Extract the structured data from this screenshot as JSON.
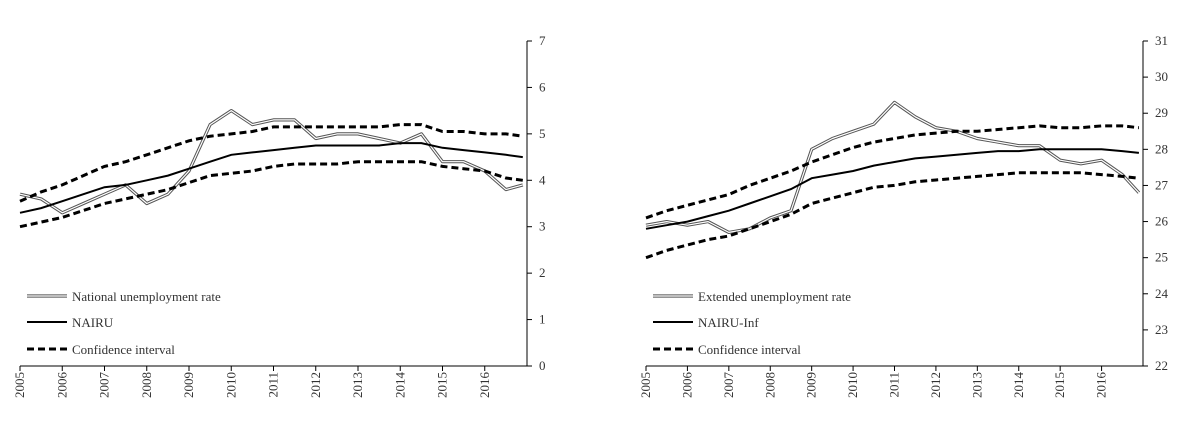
{
  "chart_data": [
    {
      "type": "line",
      "x": [
        2005,
        2005.5,
        2006,
        2006.5,
        2007,
        2007.5,
        2008,
        2008.5,
        2009,
        2009.5,
        2010,
        2010.5,
        2011,
        2011.5,
        2012,
        2012.5,
        2013,
        2013.5,
        2014,
        2014.5,
        2015,
        2015.5,
        2016,
        2016.5,
        2016.9
      ],
      "xlim": [
        2005,
        2017
      ],
      "xticks": [
        2005,
        2006,
        2007,
        2008,
        2009,
        2010,
        2011,
        2012,
        2013,
        2014,
        2015,
        2016
      ],
      "ylim": [
        0,
        7
      ],
      "yticks": [
        0,
        1,
        2,
        3,
        4,
        5,
        6,
        7
      ],
      "legend": "lower left",
      "series": [
        {
          "name": "National unemployment rate",
          "style": "double",
          "color": "#555555",
          "values": [
            3.7,
            3.6,
            3.3,
            3.5,
            3.7,
            3.9,
            3.5,
            3.7,
            4.2,
            5.2,
            5.5,
            5.2,
            5.3,
            5.3,
            4.9,
            5.0,
            5.0,
            4.9,
            4.8,
            5.0,
            4.4,
            4.4,
            4.2,
            3.8,
            3.9
          ]
        },
        {
          "name": "NAIRU",
          "style": "solid",
          "color": "#000000",
          "values": [
            3.3,
            3.4,
            3.55,
            3.7,
            3.85,
            3.9,
            4.0,
            4.1,
            4.25,
            4.4,
            4.55,
            4.6,
            4.65,
            4.7,
            4.75,
            4.75,
            4.75,
            4.75,
            4.8,
            4.8,
            4.7,
            4.65,
            4.6,
            4.55,
            4.5
          ]
        },
        {
          "name": "Confidence interval",
          "style": "dashed",
          "color": "#000000",
          "upper": [
            3.55,
            3.75,
            3.9,
            4.1,
            4.3,
            4.4,
            4.55,
            4.7,
            4.85,
            4.95,
            5.0,
            5.05,
            5.15,
            5.15,
            5.15,
            5.15,
            5.15,
            5.15,
            5.2,
            5.2,
            5.05,
            5.05,
            5.0,
            5.0,
            4.95
          ],
          "lower": [
            3.0,
            3.1,
            3.2,
            3.35,
            3.5,
            3.6,
            3.7,
            3.8,
            3.95,
            4.1,
            4.15,
            4.2,
            4.3,
            4.35,
            4.35,
            4.35,
            4.4,
            4.4,
            4.4,
            4.4,
            4.3,
            4.25,
            4.2,
            4.05,
            4.0
          ]
        }
      ]
    },
    {
      "type": "line",
      "x": [
        2005,
        2005.5,
        2006,
        2006.5,
        2007,
        2007.5,
        2008,
        2008.5,
        2009,
        2009.5,
        2010,
        2010.5,
        2011,
        2011.5,
        2012,
        2012.5,
        2013,
        2013.5,
        2014,
        2014.5,
        2015,
        2015.5,
        2016,
        2016.5,
        2016.9
      ],
      "xlim": [
        2005,
        2017
      ],
      "xticks": [
        2005,
        2006,
        2007,
        2008,
        2009,
        2010,
        2011,
        2012,
        2013,
        2014,
        2015,
        2016
      ],
      "ylim": [
        22,
        31
      ],
      "yticks": [
        22,
        23,
        24,
        25,
        26,
        27,
        28,
        29,
        30,
        31
      ],
      "legend": "lower left",
      "series": [
        {
          "name": "Extended unemployment rate",
          "style": "double",
          "color": "#555555",
          "values": [
            25.9,
            26.0,
            25.9,
            26.0,
            25.7,
            25.8,
            26.1,
            26.3,
            28.0,
            28.3,
            28.5,
            28.7,
            29.3,
            28.9,
            28.6,
            28.5,
            28.3,
            28.2,
            28.1,
            28.1,
            27.7,
            27.6,
            27.7,
            27.3,
            26.8
          ]
        },
        {
          "name": "NAIRU-Inf",
          "style": "solid",
          "color": "#000000",
          "values": [
            25.8,
            25.9,
            26.0,
            26.15,
            26.3,
            26.5,
            26.7,
            26.9,
            27.2,
            27.3,
            27.4,
            27.55,
            27.65,
            27.75,
            27.8,
            27.85,
            27.9,
            27.95,
            27.95,
            28.0,
            28.0,
            28.0,
            28.0,
            27.95,
            27.9
          ]
        },
        {
          "name": "Confidence interval",
          "style": "dashed",
          "color": "#000000",
          "upper": [
            26.1,
            26.3,
            26.45,
            26.6,
            26.75,
            27.0,
            27.2,
            27.4,
            27.65,
            27.85,
            28.05,
            28.2,
            28.3,
            28.4,
            28.45,
            28.5,
            28.5,
            28.55,
            28.6,
            28.65,
            28.6,
            28.6,
            28.65,
            28.65,
            28.6
          ],
          "lower": [
            25.0,
            25.2,
            25.35,
            25.5,
            25.6,
            25.8,
            26.0,
            26.2,
            26.5,
            26.65,
            26.8,
            26.95,
            27.0,
            27.1,
            27.15,
            27.2,
            27.25,
            27.3,
            27.35,
            27.35,
            27.35,
            27.35,
            27.3,
            27.25,
            27.2
          ]
        }
      ]
    }
  ]
}
